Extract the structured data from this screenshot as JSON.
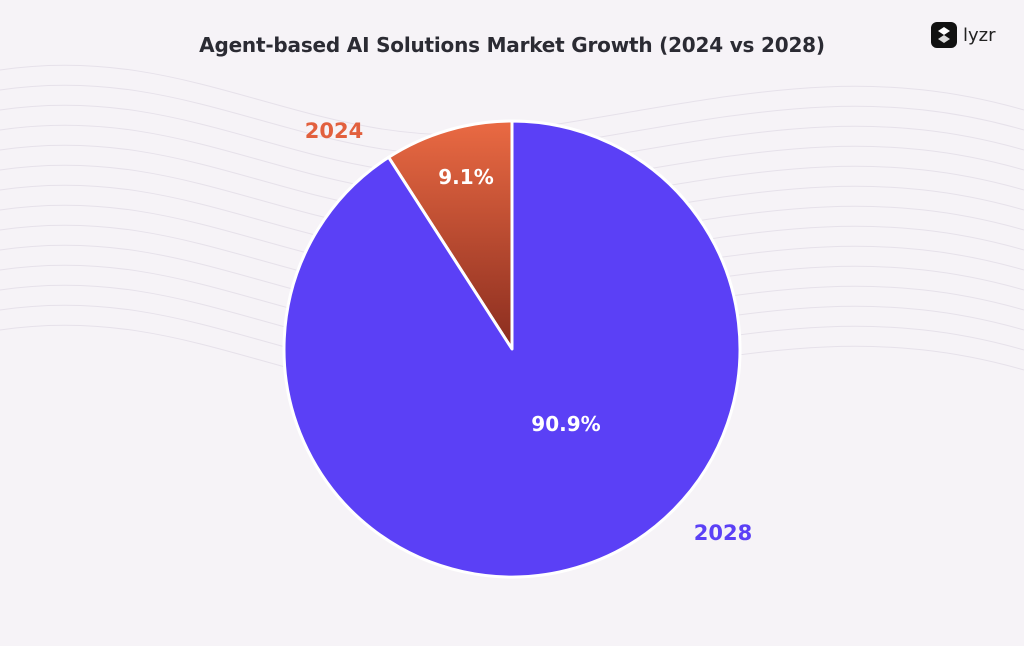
{
  "chart_data": {
    "type": "pie",
    "title": "Agent-based AI Solutions Market Growth (2024 vs 2028)",
    "slices": [
      {
        "label": "2024",
        "value": 9.1,
        "value_label": "9.1%",
        "color": "#e2603e"
      },
      {
        "label": "2028",
        "value": 90.9,
        "value_label": "90.9%",
        "color": "#5b40f6"
      }
    ]
  },
  "brand": {
    "name": "lyzr",
    "icon": "lyzr-logo-icon"
  }
}
